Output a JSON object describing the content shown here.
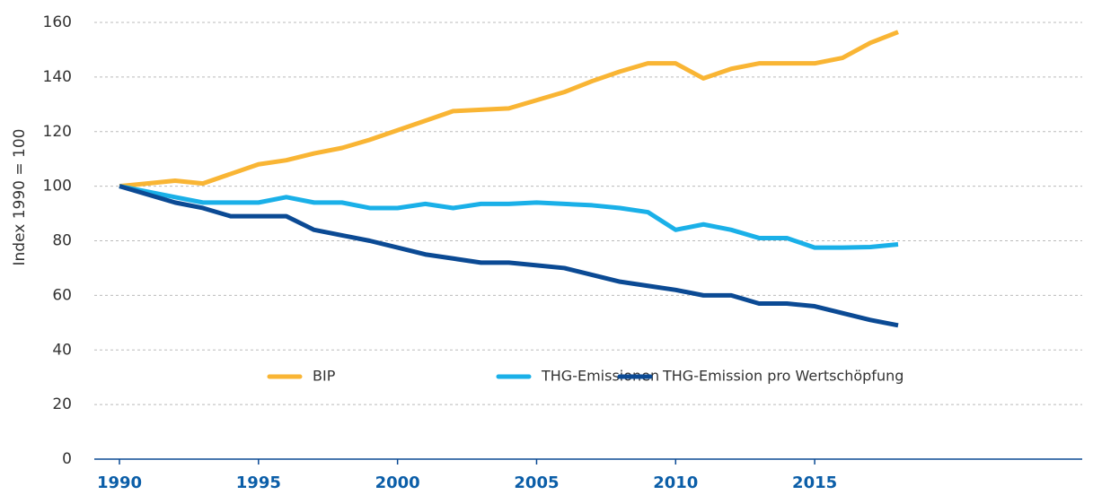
{
  "chart_data": {
    "type": "line",
    "ylabel": "Index 1990 = 100",
    "x": [
      1990,
      1991,
      1992,
      1993,
      1994,
      1995,
      1996,
      1997,
      1998,
      1999,
      2000,
      2001,
      2002,
      2003,
      2004,
      2005,
      2006,
      2007,
      2008,
      2009,
      2010,
      2011,
      2012,
      2013,
      2014,
      2015,
      2016,
      2017,
      2018
    ],
    "series": [
      {
        "name": "BIP",
        "color": "#f9b534",
        "values": [
          100,
          101,
          102,
          101,
          104.5,
          108,
          109.5,
          112,
          114,
          117,
          120.5,
          124,
          127.5,
          128,
          128.5,
          131.5,
          134.5,
          138.5,
          142,
          145,
          145,
          139.5,
          143,
          145,
          145,
          145,
          147,
          152.5,
          156.5
        ]
      },
      {
        "name": "THG-Emissionen",
        "color": "#1ab0e8",
        "values": [
          100,
          98,
          96,
          94,
          94,
          94,
          96,
          94,
          94,
          92,
          92,
          93.5,
          92,
          93.5,
          93.5,
          94,
          93.5,
          93,
          92,
          90.5,
          84,
          86,
          84,
          81,
          81,
          77.5,
          77.5,
          77.7,
          78.7
        ]
      },
      {
        "name": "THG-Emission pro Wertschöpfung",
        "color": "#0b4a94",
        "values": [
          100,
          97,
          94,
          92,
          89,
          89,
          89,
          84,
          82,
          80,
          77.5,
          75,
          73.5,
          72,
          72,
          71,
          70,
          67.5,
          65,
          63.5,
          62,
          60,
          60,
          57,
          57,
          56,
          53.5,
          51,
          49
        ]
      }
    ],
    "xlim": [
      1990,
      2018
    ],
    "xticks": [
      1990,
      1995,
      2000,
      2005,
      2010,
      2015
    ],
    "ylim": [
      0,
      160
    ],
    "yticks": [
      0,
      20,
      40,
      60,
      80,
      100,
      120,
      140,
      160
    ],
    "grid": true,
    "legend": "bottom"
  }
}
